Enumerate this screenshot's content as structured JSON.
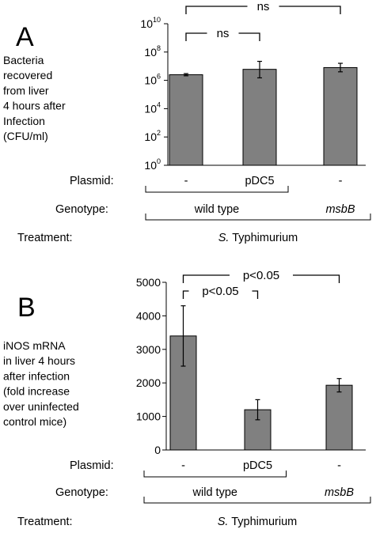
{
  "chart_data": [
    {
      "type": "bar",
      "panel": "A",
      "ylabel_lines": [
        "Bacteria",
        "recovered",
        "from liver",
        "4 hours after",
        "Infection",
        "(CFU/ml)"
      ],
      "yscale": "log",
      "ylim": [
        1,
        10000000000
      ],
      "yticks": [
        {
          "base": "10",
          "exp": "10",
          "value": 10000000000
        },
        {
          "base": "10",
          "exp": "8",
          "value": 100000000
        },
        {
          "base": "10",
          "exp": "6",
          "value": 1000000
        },
        {
          "base": "10",
          "exp": "4",
          "value": 10000
        },
        {
          "base": "10",
          "exp": "2",
          "value": 100
        },
        {
          "base": "10",
          "exp": "0",
          "value": 1
        }
      ],
      "bars": [
        {
          "plasmid": "-",
          "value": 2500000,
          "err_low": 2100000,
          "err_high": 3000000
        },
        {
          "plasmid": "pDC5",
          "value": 6000000,
          "err_low": 1500000,
          "err_high": 22000000
        },
        {
          "plasmid": "-",
          "value": 8000000,
          "err_low": 4000000,
          "err_high": 16000000
        }
      ],
      "bar_color": "#808080",
      "comparisons": [
        {
          "from": 0,
          "to": 1,
          "label": "ns"
        },
        {
          "from": 0,
          "to": 2,
          "label": "ns"
        }
      ],
      "rows": {
        "plasmid_label": "Plasmid:",
        "genotype_label": "Genotype:",
        "genotype_wt": "wild type",
        "genotype_mut": "msbB",
        "treatment_label": "Treatment:",
        "treatment_italic": "S.",
        "treatment_rest": " Typhimurium"
      }
    },
    {
      "type": "bar",
      "panel": "B",
      "ylabel_lines": [
        "iNOS  mRNA",
        "in liver 4 hours",
        "after infection",
        "(fold increase",
        "over uninfected",
        "control mice)"
      ],
      "yscale": "linear",
      "ylim": [
        0,
        5000
      ],
      "yticks": [
        0,
        1000,
        2000,
        3000,
        4000,
        5000
      ],
      "bars": [
        {
          "plasmid": "-",
          "value": 3400,
          "err": 900
        },
        {
          "plasmid": "pDC5",
          "value": 1200,
          "err": 300
        },
        {
          "plasmid": "-",
          "value": 1930,
          "err": 200
        }
      ],
      "bar_color": "#808080",
      "comparisons": [
        {
          "from": 0,
          "to": 1,
          "label": "p<0.05"
        },
        {
          "from": 0,
          "to": 2,
          "label": "p<0.05"
        }
      ],
      "rows": {
        "plasmid_label": "Plasmid:",
        "genotype_label": "Genotype:",
        "genotype_wt": "wild type",
        "genotype_mut": "msbB",
        "treatment_label": "Treatment:",
        "treatment_italic": "S.",
        "treatment_rest": " Typhimurium"
      }
    }
  ]
}
